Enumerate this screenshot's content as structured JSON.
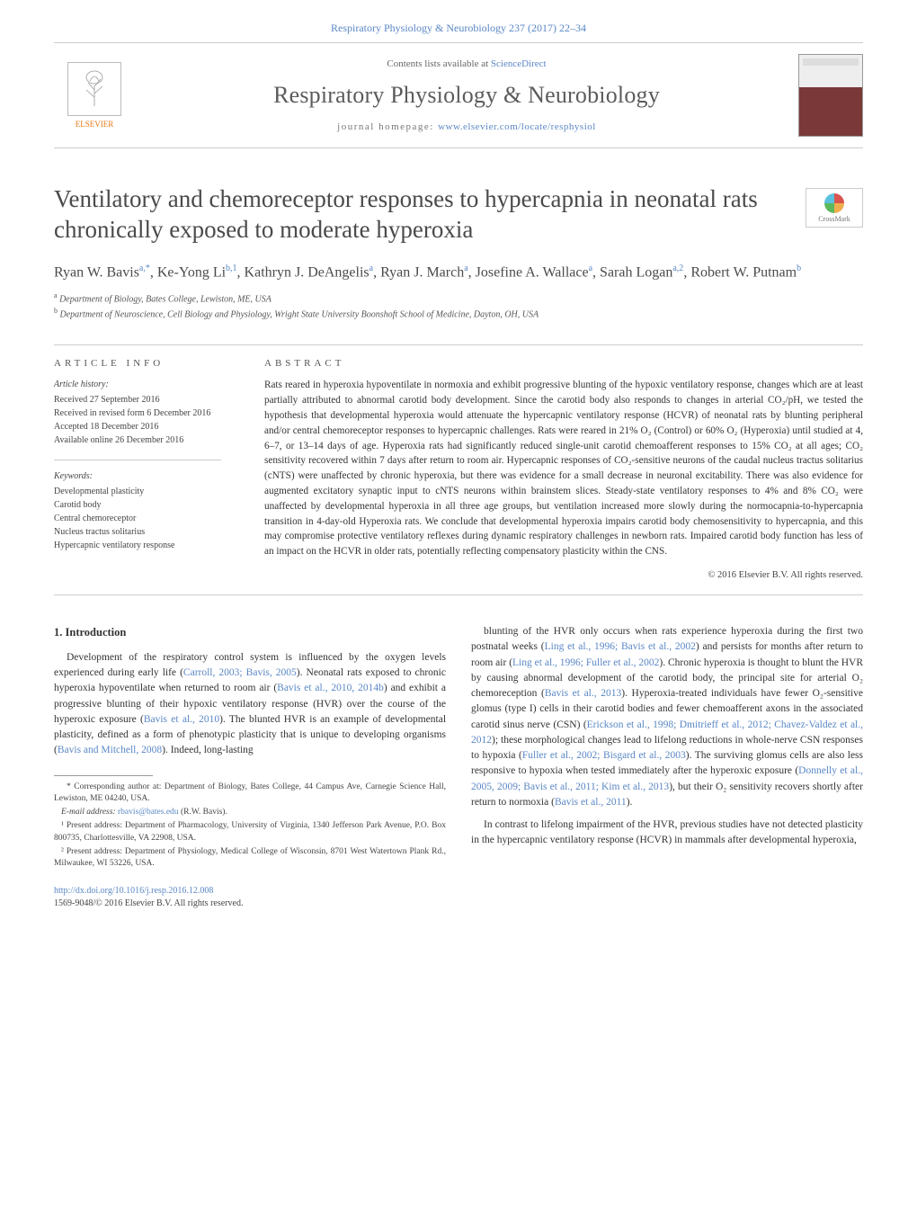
{
  "colors": {
    "link": "#5a87c5",
    "elsevier_orange": "#e67817",
    "text": "#333333",
    "muted": "#666666",
    "rule": "#cccccc",
    "background": "#ffffff"
  },
  "typography": {
    "base_family": "Georgia, 'Times New Roman', serif",
    "title_fontsize": 27,
    "journal_fontsize": 26,
    "authors_fontsize": 16,
    "body_fontsize": 11.5,
    "abstract_fontsize": 11.2,
    "footnote_fontsize": 9.5
  },
  "header": {
    "running_head": "Respiratory Physiology & Neurobiology 237 (2017) 22–34"
  },
  "masthead": {
    "publisher_label": "ELSEVIER",
    "contents_prefix": "Contents lists available at ",
    "contents_link_text": "ScienceDirect",
    "journal_name": "Respiratory Physiology & Neurobiology",
    "homepage_prefix": "journal homepage: ",
    "homepage_url_text": "www.elsevier.com/locate/resphysiol"
  },
  "crossmark_label": "CrossMark",
  "article": {
    "title": "Ventilatory and chemoreceptor responses to hypercapnia in neonatal rats chronically exposed to moderate hyperoxia",
    "authors_html": "Ryan W. Bavis<sup>a,*</sup>, Ke-Yong Li<sup>b,1</sup>, Kathryn J. DeAngelis<sup>a</sup>, Ryan J. March<sup>a</sup>, Josefine A. Wallace<sup>a</sup>, Sarah Logan<sup>a,2</sup>, Robert W. Putnam<sup>b</sup>",
    "affiliations": [
      {
        "marker": "a",
        "text": "Department of Biology, Bates College, Lewiston, ME, USA"
      },
      {
        "marker": "b",
        "text": "Department of Neuroscience, Cell Biology and Physiology, Wright State University Boonshoft School of Medicine, Dayton, OH, USA"
      }
    ]
  },
  "article_info": {
    "label": "article info",
    "history_heading": "Article history:",
    "history": [
      "Received 27 September 2016",
      "Received in revised form 6 December 2016",
      "Accepted 18 December 2016",
      "Available online 26 December 2016"
    ],
    "keywords_heading": "Keywords:",
    "keywords": [
      "Developmental plasticity",
      "Carotid body",
      "Central chemoreceptor",
      "Nucleus tractus solitarius",
      "Hypercapnic ventilatory response"
    ]
  },
  "abstract": {
    "label": "abstract",
    "text": "Rats reared in hyperoxia hypoventilate in normoxia and exhibit progressive blunting of the hypoxic ventilatory response, changes which are at least partially attributed to abnormal carotid body development. Since the carotid body also responds to changes in arterial CO₂/pH, we tested the hypothesis that developmental hyperoxia would attenuate the hypercapnic ventilatory response (HCVR) of neonatal rats by blunting peripheral and/or central chemoreceptor responses to hypercapnic challenges. Rats were reared in 21% O₂ (Control) or 60% O₂ (Hyperoxia) until studied at 4, 6–7, or 13–14 days of age. Hyperoxia rats had significantly reduced single-unit carotid chemoafferent responses to 15% CO₂ at all ages; CO₂ sensitivity recovered within 7 days after return to room air. Hypercapnic responses of CO₂-sensitive neurons of the caudal nucleus tractus solitarius (cNTS) were unaffected by chronic hyperoxia, but there was evidence for a small decrease in neuronal excitability. There was also evidence for augmented excitatory synaptic input to cNTS neurons within brainstem slices. Steady-state ventilatory responses to 4% and 8% CO₂ were unaffected by developmental hyperoxia in all three age groups, but ventilation increased more slowly during the normocapnia-to-hypercapnia transition in 4-day-old Hyperoxia rats. We conclude that developmental hyperoxia impairs carotid body chemosensitivity to hypercapnia, and this may compromise protective ventilatory reflexes during dynamic respiratory challenges in newborn rats. Impaired carotid body function has less of an impact on the HCVR in older rats, potentially reflecting compensatory plasticity within the CNS.",
    "copyright": "© 2016 Elsevier B.V. All rights reserved."
  },
  "body": {
    "section_heading": "1. Introduction",
    "col1": "Development of the respiratory control system is influenced by the oxygen levels experienced during early life (<a>Carroll, 2003; Bavis, 2005</a>). Neonatal rats exposed to chronic hyperoxia hypoventilate when returned to room air (<a>Bavis et al., 2010, 2014b</a>) and exhibit a progressive blunting of their hypoxic ventilatory response (HVR) over the course of the hyperoxic exposure (<a>Bavis et al., 2010</a>). The blunted HVR is an example of developmental plasticity, defined as a form of phenotypic plasticity that is unique to developing organisms (<a>Bavis and Mitchell, 2008</a>). Indeed, long-lasting",
    "col2_p1": "blunting of the HVR only occurs when rats experience hyperoxia during the first two postnatal weeks (<a>Ling et al., 1996; Bavis et al., 2002</a>) and persists for months after return to room air (<a>Ling et al., 1996; Fuller et al., 2002</a>). Chronic hyperoxia is thought to blunt the HVR by causing abnormal development of the carotid body, the principal site for arterial O₂ chemoreception (<a>Bavis et al., 2013</a>). Hyperoxia-treated individuals have fewer O₂-sensitive glomus (type I) cells in their carotid bodies and fewer chemoafferent axons in the associated carotid sinus nerve (CSN) (<a>Erickson et al., 1998; Dmitrieff et al., 2012; Chavez-Valdez et al., 2012</a>); these morphological changes lead to lifelong reductions in whole-nerve CSN responses to hypoxia (<a>Fuller et al., 2002; Bisgard et al., 2003</a>). The surviving glomus cells are also less responsive to hypoxia when tested immediately after the hyperoxic exposure (<a>Donnelly et al., 2005, 2009; Bavis et al., 2011; Kim et al., 2013</a>), but their O₂ sensitivity recovers shortly after return to normoxia (<a>Bavis et al., 2011</a>).",
    "col2_p2": "In contrast to lifelong impairment of the HVR, previous studies have not detected plasticity in the hypercapnic ventilatory response (HCVR) in mammals after developmental hyperoxia,"
  },
  "footnotes": {
    "corr": "* Corresponding author at: Department of Biology, Bates College, 44 Campus Ave, Carnegie Science Hall, Lewiston, ME 04240, USA.",
    "email_label": "E-mail address: ",
    "email": "rbavis@bates.edu",
    "email_who": " (R.W. Bavis).",
    "note1": "¹ Present address: Department of Pharmacology, University of Virginia, 1340 Jefferson Park Avenue, P.O. Box 800735, Charlottesville, VA 22908, USA.",
    "note2": "² Present address: Department of Physiology, Medical College of Wisconsin, 8701 West Watertown Plank Rd., Milwaukee, WI 53226, USA."
  },
  "doi": {
    "url_text": "http://dx.doi.org/10.1016/j.resp.2016.12.008",
    "issn_line": "1569-9048/© 2016 Elsevier B.V. All rights reserved."
  }
}
